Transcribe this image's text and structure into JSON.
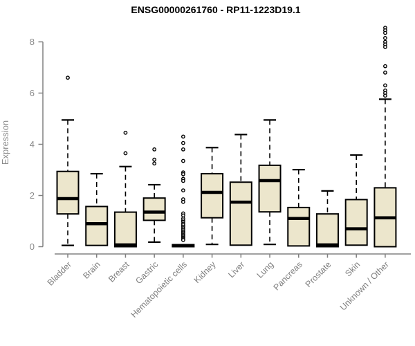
{
  "title": "ENSG00000261760 - RP11-1223D19.1",
  "chart_data": {
    "type": "boxplot",
    "title": "ENSG00000261760 - RP11-1223D19.1",
    "xlabel": "",
    "ylabel": "Expression",
    "ylim": [
      0,
      8.7
    ],
    "yticks": [
      0,
      2,
      4,
      6,
      8
    ],
    "grid": false,
    "legend": "none",
    "colors": {
      "box_fill": "#ece6cc",
      "box_border": "#000000",
      "median": "#000000",
      "whisker": "#000000",
      "axis": "#808080",
      "tick_label": "#8a8a8a",
      "title": "#000000"
    },
    "categories": [
      "Bladder",
      "Brain",
      "Breast",
      "Gastric",
      "Hematopoietic cells",
      "Kidney",
      "Liver",
      "Lung",
      "Pancreas",
      "Prostate",
      "Skin",
      "Unknown / Other"
    ],
    "series": [
      {
        "label": "Bladder",
        "whislo": 0.05,
        "q1": 1.28,
        "med": 1.88,
        "q3": 2.94,
        "whishi": 4.95,
        "outliers": [
          6.6
        ]
      },
      {
        "label": "Brain",
        "whislo": 0.05,
        "q1": 0.05,
        "med": 0.9,
        "q3": 1.57,
        "whishi": 2.85,
        "outliers": []
      },
      {
        "label": "Breast",
        "whislo": 0.0,
        "q1": 0.0,
        "med": 0.07,
        "q3": 1.35,
        "whishi": 3.13,
        "outliers": [
          4.45,
          3.65
        ]
      },
      {
        "label": "Gastric",
        "whislo": 0.18,
        "q1": 1.03,
        "med": 1.35,
        "q3": 1.9,
        "whishi": 2.42,
        "outliers": [
          3.8,
          3.4,
          3.25
        ]
      },
      {
        "label": "Hematopoietic cells",
        "whislo": 0.0,
        "q1": 0.0,
        "med": 0.04,
        "q3": 0.08,
        "whishi": 0.1,
        "outliers": [
          4.3,
          4.05,
          3.8,
          3.35,
          2.9,
          2.83,
          2.65,
          2.57,
          2.2,
          1.85,
          1.75,
          1.3,
          1.22,
          1.1,
          1.03,
          0.97,
          0.9,
          0.84,
          0.78,
          0.72,
          0.66,
          0.6,
          0.55,
          0.5,
          0.45,
          0.4,
          0.35,
          0.3,
          0.26
        ]
      },
      {
        "label": "Kidney",
        "whislo": 0.09,
        "q1": 1.13,
        "med": 2.12,
        "q3": 2.85,
        "whishi": 3.87,
        "outliers": []
      },
      {
        "label": "Liver",
        "whislo": 0.06,
        "q1": 0.06,
        "med": 1.74,
        "q3": 2.52,
        "whishi": 4.38,
        "outliers": []
      },
      {
        "label": "Lung",
        "whislo": 0.09,
        "q1": 1.36,
        "med": 2.58,
        "q3": 3.18,
        "whishi": 4.95,
        "outliers": []
      },
      {
        "label": "Pancreas",
        "whislo": 0.03,
        "q1": 0.03,
        "med": 1.1,
        "q3": 1.53,
        "whishi": 3.01,
        "outliers": []
      },
      {
        "label": "Prostate",
        "whislo": 0.0,
        "q1": 0.0,
        "med": 0.07,
        "q3": 1.28,
        "whishi": 2.18,
        "outliers": []
      },
      {
        "label": "Skin",
        "whislo": 0.06,
        "q1": 0.06,
        "med": 0.7,
        "q3": 1.84,
        "whishi": 3.58,
        "outliers": []
      },
      {
        "label": "Unknown / Other",
        "whislo": 0.0,
        "q1": 0.0,
        "med": 1.13,
        "q3": 2.3,
        "whishi": 5.76,
        "outliers": [
          8.55,
          8.45,
          8.35,
          8.15,
          8.0,
          7.9,
          7.8,
          7.05,
          6.8,
          6.3,
          6.1,
          6.0,
          5.9
        ]
      }
    ]
  }
}
